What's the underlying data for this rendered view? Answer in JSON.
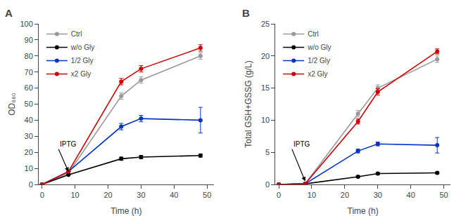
{
  "chart_data": [
    {
      "type": "line",
      "title": "A",
      "xlabel": "Time (h)",
      "ylabel": "OD₆₆₀",
      "x": [
        0,
        8,
        24,
        30,
        48
      ],
      "series": [
        {
          "name": "Ctrl",
          "color": "#999999",
          "marker": "circle",
          "values": [
            0,
            7,
            55,
            65,
            80
          ],
          "yerr": [
            0,
            0,
            2,
            2,
            2
          ]
        },
        {
          "name": "w/o Gly",
          "color": "#000000",
          "marker": "circle",
          "values": [
            0,
            6,
            16,
            17,
            18
          ],
          "yerr": [
            0,
            0,
            1,
            1,
            1
          ]
        },
        {
          "name": "1/2 Gly",
          "color": "#0033cc",
          "marker": "circle",
          "values": [
            0,
            8,
            36,
            41,
            40
          ],
          "yerr": [
            0,
            0,
            2,
            2,
            8
          ]
        },
        {
          "name": "x2 Gly",
          "color": "#cc0000",
          "marker": "circle",
          "values": [
            0,
            8,
            64,
            72,
            85
          ],
          "yerr": [
            0,
            0,
            2,
            2,
            2
          ]
        }
      ],
      "xlim": [
        -1,
        52
      ],
      "xticks": [
        0,
        10,
        20,
        30,
        40,
        50
      ],
      "ylim": [
        0,
        100
      ],
      "yticks": [
        0,
        10,
        20,
        30,
        40,
        50,
        60,
        70,
        80,
        90,
        100
      ],
      "grid": false,
      "legend": "upper left",
      "annotations": [
        {
          "text": "IPTG",
          "x": 8,
          "y": 8,
          "text_x": 5,
          "text_y": 22
        }
      ]
    },
    {
      "type": "line",
      "title": "B",
      "xlabel": "Time (h)",
      "ylabel": "Total GSH+GSSG (g/L)",
      "x": [
        0,
        8,
        24,
        30,
        48
      ],
      "series": [
        {
          "name": "Ctrl",
          "color": "#999999",
          "marker": "circle",
          "values": [
            0,
            0.1,
            11,
            15,
            19.5
          ],
          "yerr": [
            0,
            0,
            0.5,
            0.5,
            0.5
          ]
        },
        {
          "name": "w/o Gly",
          "color": "#000000",
          "marker": "circle",
          "values": [
            0,
            0.1,
            1.2,
            1.7,
            1.8
          ],
          "yerr": [
            0,
            0,
            0.15,
            0.15,
            0.15
          ]
        },
        {
          "name": "1/2 Gly",
          "color": "#0033cc",
          "marker": "circle",
          "values": [
            0,
            0.1,
            5.2,
            6.3,
            6.1
          ],
          "yerr": [
            0,
            0,
            0.3,
            0.3,
            1.2
          ]
        },
        {
          "name": "x2 Gly",
          "color": "#cc0000",
          "marker": "circle",
          "values": [
            0,
            0.1,
            9.8,
            14.4,
            20.7
          ],
          "yerr": [
            0,
            0,
            0.4,
            0.5,
            0.4
          ]
        }
      ],
      "xlim": [
        -1,
        52
      ],
      "xticks": [
        0,
        10,
        20,
        30,
        40,
        50
      ],
      "ylim": [
        0,
        25
      ],
      "yticks": [
        0,
        5,
        10,
        15,
        20,
        25
      ],
      "grid": false,
      "legend": "upper left",
      "annotations": [
        {
          "text": "IPTG",
          "x": 8,
          "y": 0.5,
          "text_x": 4,
          "text_y": 5.5
        }
      ]
    }
  ]
}
